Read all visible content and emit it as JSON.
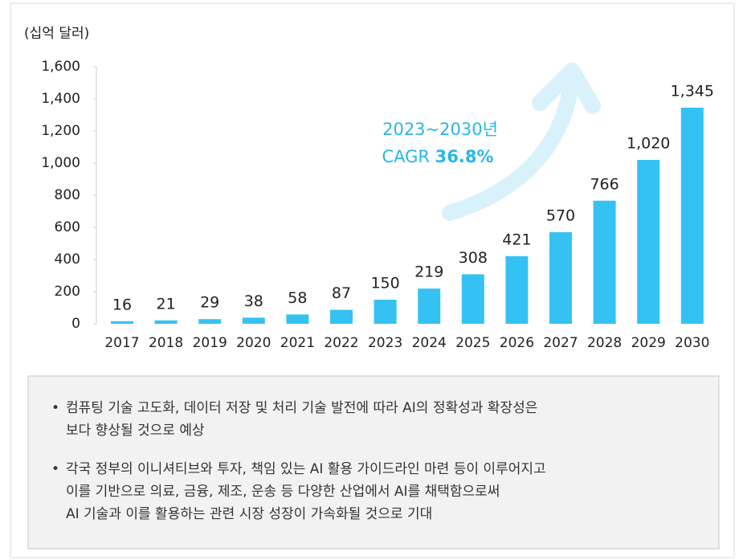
{
  "chart_data": {
    "type": "bar",
    "y_label": "(십억 달러)",
    "categories": [
      "2017",
      "2018",
      "2019",
      "2020",
      "2021",
      "2022",
      "2023",
      "2024",
      "2025",
      "2026",
      "2027",
      "2028",
      "2029",
      "2030"
    ],
    "values": [
      16,
      21,
      29,
      38,
      58,
      87,
      150,
      219,
      308,
      421,
      570,
      766,
      1020,
      1345
    ],
    "value_labels": [
      "16",
      "21",
      "29",
      "38",
      "58",
      "87",
      "150",
      "219",
      "308",
      "421",
      "570",
      "766",
      "1,020",
      "1,345"
    ],
    "color": "#35c2f3",
    "ylim": [
      0,
      1600
    ],
    "yticks": [
      0,
      200,
      400,
      600,
      800,
      {
        "value": 1000,
        "label": "1,000"
      },
      {
        "value": 1200,
        "label": "1,200"
      },
      {
        "value": 1400,
        "label": "1,400"
      },
      {
        "value": 1600,
        "label": "1,600"
      }
    ],
    "annotation": {
      "period": "2023~2030년",
      "label": "CAGR",
      "value": "36.8%"
    }
  },
  "notes": [
    [
      "컴퓨팅 기술 고도화, 데이터 저장 및 처리 기술 발전에 따라 AI의 정확성과 확장성은",
      "보다 향상될 것으로 예상"
    ],
    [
      "각국 정부의 이니셔티브와 투자, 책임 있는 AI 활용 가이드라인 마련 등이 이루어지고",
      "이를 기반으로 의료, 금융, 제조, 운송 등 다양한 산업에서 AI를 채택함으로써",
      "AI 기술과 이를 활용하는 관련 시장 성장이 가속화될 것으로 기대"
    ]
  ]
}
